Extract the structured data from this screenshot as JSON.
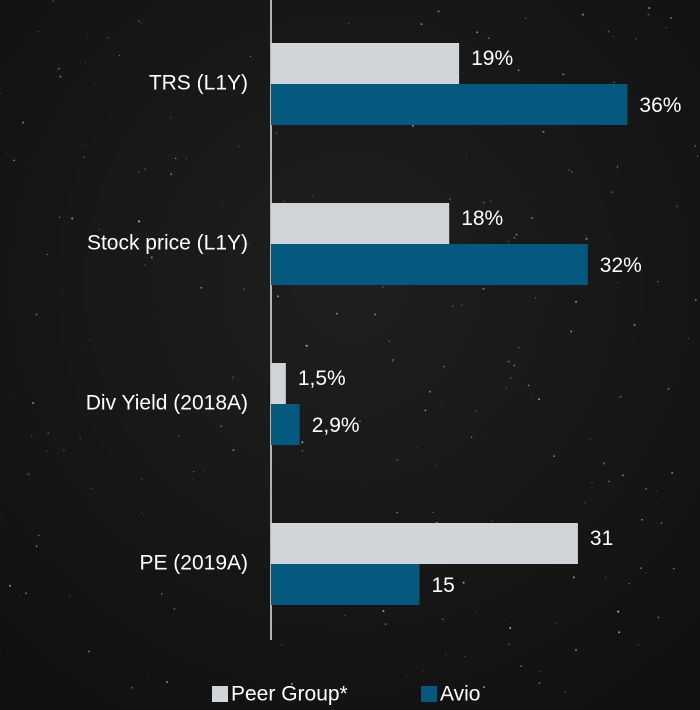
{
  "chart_data": {
    "type": "hbar",
    "categories": [
      "TRS (L1Y)",
      "Stock price (L1Y)",
      "Div Yield (2018A)",
      "PE (2019A)"
    ],
    "series": [
      {
        "name": "Peer Group*",
        "color": "#d1d4d9",
        "values": [
          19,
          18,
          1.5,
          31
        ],
        "value_labels": [
          "19%",
          "18%",
          "1,5%",
          "31"
        ]
      },
      {
        "name": "Avio",
        "color": "#05597f",
        "values": [
          36,
          32,
          2.9,
          15
        ],
        "value_labels": [
          "36%",
          "32%",
          "2,9%",
          "15"
        ]
      }
    ],
    "legend": "bottom"
  }
}
